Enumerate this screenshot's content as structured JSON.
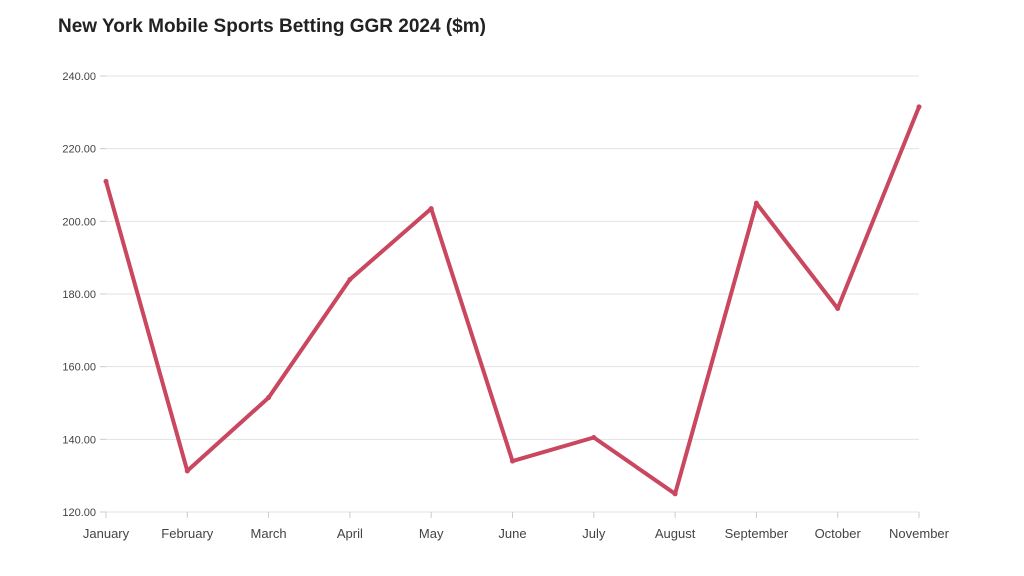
{
  "chart_data": {
    "type": "line",
    "title": "New York Mobile Sports Betting GGR 2024 ($m)",
    "xlabel": "",
    "ylabel": "",
    "categories": [
      "January",
      "February",
      "March",
      "April",
      "May",
      "June",
      "July",
      "August",
      "September",
      "October",
      "November"
    ],
    "series": [
      {
        "name": "GGR ($m)",
        "values": [
          211,
          131.3,
          151.5,
          184,
          203.5,
          134,
          140.5,
          125,
          205,
          176,
          231.5
        ]
      }
    ],
    "ylim": [
      120,
      240
    ],
    "yticks": [
      120,
      140,
      160,
      180,
      200,
      220,
      240
    ],
    "ytick_labels": [
      "120.00",
      "140.00",
      "160.00",
      "180.00",
      "200.00",
      "220.00",
      "240.00"
    ],
    "grid": true,
    "legend": "none",
    "colors": {
      "line": "#c9475f",
      "grid": "#e3e3e3",
      "axis": "#cccccc"
    }
  }
}
